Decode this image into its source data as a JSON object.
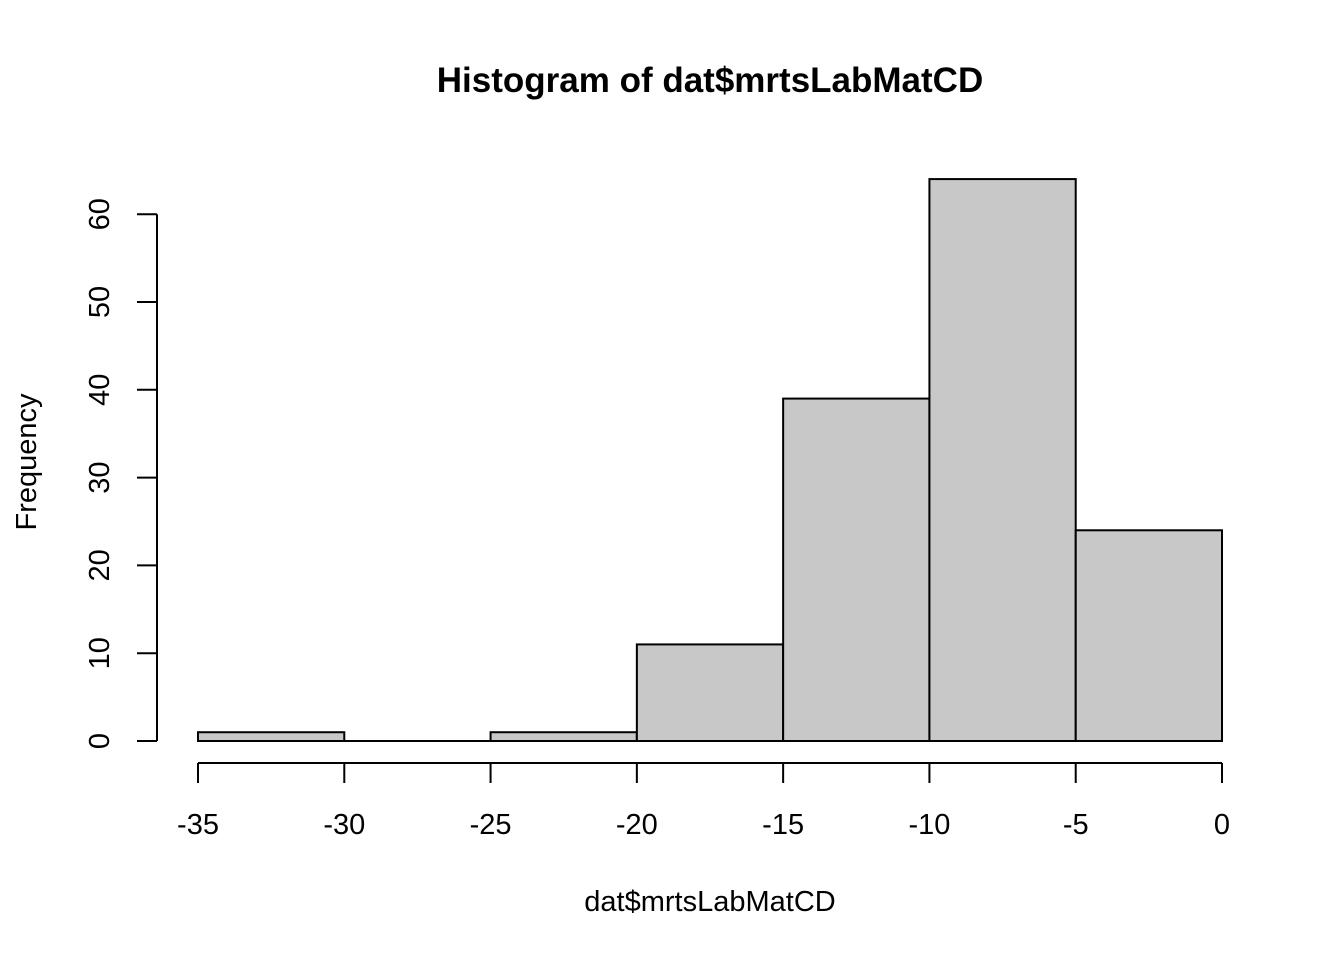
{
  "chart_data": {
    "type": "bar",
    "title": "Histogram of dat$mrtsLabMatCD",
    "xlabel": "dat$mrtsLabMatCD",
    "ylabel": "Frequency",
    "bins": [
      {
        "x0": -35,
        "x1": -30,
        "count": 1
      },
      {
        "x0": -30,
        "x1": -25,
        "count": 0
      },
      {
        "x0": -25,
        "x1": -20,
        "count": 1
      },
      {
        "x0": -20,
        "x1": -15,
        "count": 11
      },
      {
        "x0": -15,
        "x1": -10,
        "count": 39
      },
      {
        "x0": -10,
        "x1": -5,
        "count": 64
      },
      {
        "x0": -5,
        "x1": 0,
        "count": 24
      }
    ],
    "xticks": [
      -35,
      -30,
      -25,
      -20,
      -15,
      -10,
      -5,
      0
    ],
    "yticks": [
      0,
      10,
      20,
      30,
      40,
      50,
      60
    ],
    "xlim": [
      -35,
      0
    ],
    "ylim": [
      0,
      64
    ],
    "grid": false,
    "bar_color": "#c8c8c8",
    "edge_color": "#000000"
  }
}
